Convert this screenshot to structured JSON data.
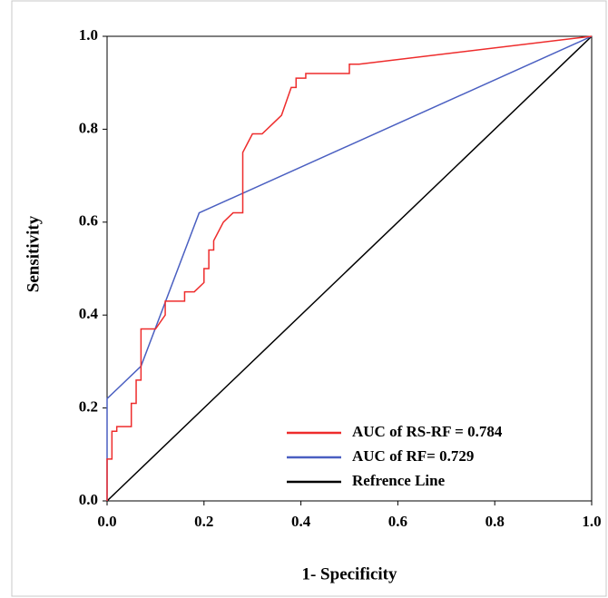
{
  "chart_data": {
    "type": "line",
    "x_label": "1- Specificity",
    "y_label": "Sensitivity",
    "xlim": [
      0,
      1
    ],
    "ylim": [
      0,
      1
    ],
    "xticks": [
      {
        "value": 0,
        "label": "0.0"
      },
      {
        "value": 0.2,
        "label": "0.2"
      },
      {
        "value": 0.4,
        "label": "0.4"
      },
      {
        "value": 0.6,
        "label": "0.6"
      },
      {
        "value": 0.8,
        "label": "0.8"
      },
      {
        "value": 1,
        "label": "1.0"
      }
    ],
    "yticks": [
      {
        "value": 0,
        "label": "0.0"
      },
      {
        "value": 0.2,
        "label": "0.2"
      },
      {
        "value": 0.4,
        "label": "0.4"
      },
      {
        "value": 0.6,
        "label": "0.6"
      },
      {
        "value": 0.8,
        "label": "0.8"
      },
      {
        "value": 1,
        "label": "1.0"
      }
    ],
    "legend": "lower right",
    "series": [
      {
        "name": "AUC of RS-RF = 0.784",
        "color": "#ee2c2c",
        "x": [
          0,
          0,
          0.01,
          0.01,
          0.02,
          0.02,
          0.05,
          0.05,
          0.06,
          0.06,
          0.07,
          0.07,
          0.1,
          0.12,
          0.12,
          0.16,
          0.16,
          0.18,
          0.2,
          0.2,
          0.21,
          0.21,
          0.22,
          0.22,
          0.24,
          0.26,
          0.28,
          0.28,
          0.29,
          0.3,
          0.32,
          0.34,
          0.36,
          0.38,
          0.39,
          0.39,
          0.41,
          0.41,
          0.5,
          0.5,
          0.52,
          1
        ],
        "values": [
          0,
          0.09,
          0.09,
          0.15,
          0.15,
          0.16,
          0.16,
          0.21,
          0.21,
          0.26,
          0.26,
          0.37,
          0.37,
          0.4,
          0.43,
          0.43,
          0.45,
          0.45,
          0.47,
          0.5,
          0.5,
          0.54,
          0.54,
          0.56,
          0.6,
          0.62,
          0.62,
          0.75,
          0.77,
          0.79,
          0.79,
          0.81,
          0.83,
          0.89,
          0.89,
          0.91,
          0.91,
          0.92,
          0.92,
          0.94,
          0.94,
          1
        ]
      },
      {
        "name": "AUC of RF= 0.729",
        "color": "#4a5fc1",
        "x": [
          0,
          0,
          0.07,
          0.19,
          1
        ],
        "values": [
          0,
          0.22,
          0.29,
          0.62,
          1
        ]
      },
      {
        "name": "Refrence Line",
        "color": "#000000",
        "x": [
          0,
          1
        ],
        "values": [
          0,
          1
        ]
      }
    ]
  }
}
